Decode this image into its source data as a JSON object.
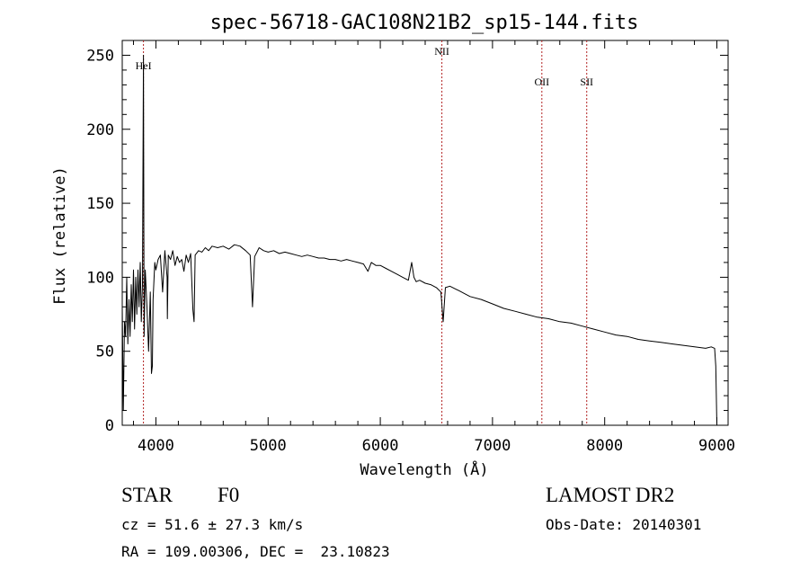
{
  "chart_data": {
    "type": "line",
    "title": "spec-56718-GAC108N21B2_sp15-144.fits",
    "xlabel": "Wavelength (Å)",
    "ylabel": "Flux (relative)",
    "xlim": [
      3700,
      9100
    ],
    "ylim": [
      0,
      260
    ],
    "xticks": [
      4000,
      5000,
      6000,
      7000,
      8000,
      9000
    ],
    "yticks": [
      0,
      50,
      100,
      150,
      200,
      250
    ],
    "grid": false,
    "series": [
      {
        "x": [
          3700,
          3710,
          3720,
          3730,
          3740,
          3750,
          3760,
          3770,
          3780,
          3790,
          3800,
          3810,
          3820,
          3830,
          3840,
          3850,
          3860,
          3870,
          3880,
          3889,
          3895,
          3905,
          3920,
          3935,
          3950,
          3960,
          3968,
          3975,
          3990,
          4000,
          4020,
          4040,
          4060,
          4080,
          4100,
          4102,
          4110,
          4130,
          4150,
          4170,
          4190,
          4210,
          4230,
          4250,
          4270,
          4290,
          4310,
          4330,
          4340,
          4350,
          4380,
          4410,
          4440,
          4470,
          4500,
          4550,
          4600,
          4650,
          4700,
          4750,
          4800,
          4840,
          4861,
          4880,
          4920,
          4960,
          5000,
          5050,
          5100,
          5150,
          5200,
          5250,
          5300,
          5350,
          5400,
          5450,
          5500,
          5550,
          5600,
          5650,
          5700,
          5750,
          5800,
          5850,
          5890,
          5920,
          5960,
          6000,
          6050,
          6100,
          6150,
          6200,
          6250,
          6280,
          6300,
          6320,
          6350,
          6400,
          6450,
          6500,
          6540,
          6560,
          6580,
          6620,
          6700,
          6800,
          6900,
          7000,
          7100,
          7200,
          7300,
          7400,
          7500,
          7600,
          7700,
          7800,
          7900,
          8000,
          8100,
          8200,
          8300,
          8400,
          8500,
          8600,
          8700,
          8800,
          8900,
          8950,
          8980,
          8990,
          9000
        ],
        "values": [
          80,
          10,
          70,
          60,
          100,
          55,
          85,
          60,
          95,
          70,
          105,
          65,
          100,
          75,
          105,
          80,
          110,
          70,
          95,
          250,
          60,
          105,
          80,
          50,
          90,
          35,
          40,
          85,
          110,
          105,
          112,
          115,
          90,
          118,
          100,
          72,
          115,
          112,
          118,
          108,
          114,
          110,
          112,
          104,
          115,
          110,
          116,
          78,
          70,
          115,
          118,
          117,
          120,
          118,
          121,
          120,
          121,
          119,
          122,
          121,
          118,
          115,
          80,
          114,
          120,
          118,
          117,
          118,
          116,
          117,
          116,
          115,
          114,
          115,
          114,
          113,
          113,
          112,
          112,
          111,
          112,
          111,
          110,
          109,
          104,
          110,
          108,
          108,
          106,
          104,
          102,
          100,
          98,
          110,
          100,
          97,
          98,
          96,
          95,
          93,
          90,
          70,
          93,
          94,
          91,
          87,
          85,
          82,
          79,
          77,
          75,
          73,
          72,
          70,
          69,
          67,
          65,
          63,
          61,
          60,
          58,
          57,
          56,
          55,
          54,
          53,
          52,
          53,
          52,
          40,
          0
        ]
      }
    ],
    "annotations": [
      {
        "label": "HeI",
        "x": 3889
      },
      {
        "label": "NII",
        "x": 6549
      },
      {
        "label": "OII",
        "x": 7440
      },
      {
        "label": "SII",
        "x": 7840
      }
    ]
  },
  "info": {
    "object_class": "STAR",
    "subclass": "F0",
    "survey": "LAMOST DR2",
    "cz": "cz = 51.6 ± 27.3 km/s",
    "obs_date": "Obs-Date: 20140301",
    "radec": "RA = 109.00306, DEC =  23.10823"
  },
  "colors": {
    "line": "#000000",
    "marker": "#b22222"
  }
}
